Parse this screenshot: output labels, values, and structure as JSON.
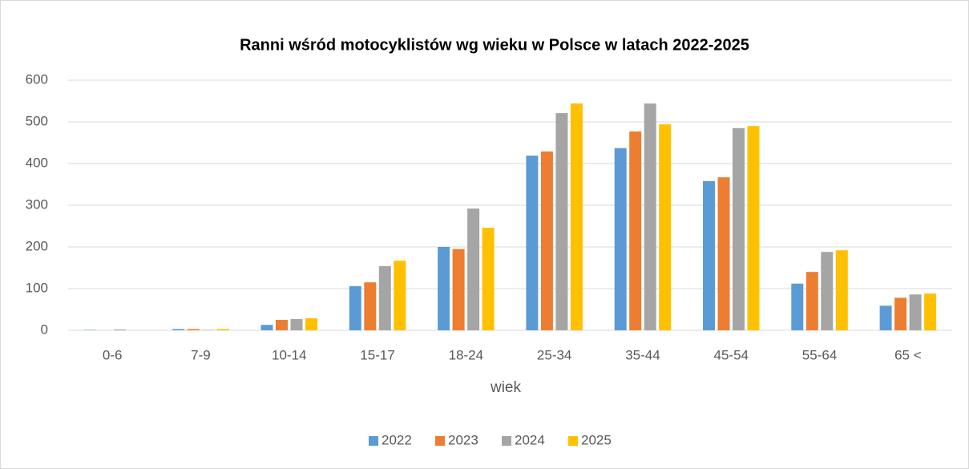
{
  "chart_data": {
    "type": "bar",
    "title": "Ranni wśród motocyklistów wg wieku w Polsce w latach 2022-2025",
    "x_label": "wiek",
    "categories": [
      "0-6",
      "7-9",
      "10-14",
      "15-17",
      "18-24",
      "25-34",
      "35-44",
      "45-54",
      "55-64",
      "65 <"
    ],
    "series": [
      {
        "name": "2022",
        "color": "#5b9bd5",
        "values": [
          1,
          3,
          13,
          106,
          200,
          419,
          437,
          358,
          112,
          59
        ]
      },
      {
        "name": "2023",
        "color": "#ed7d31",
        "values": [
          0,
          3,
          25,
          115,
          195,
          429,
          477,
          367,
          140,
          78
        ]
      },
      {
        "name": "2024",
        "color": "#a5a5a5",
        "values": [
          2,
          1,
          27,
          154,
          292,
          521,
          544,
          485,
          188,
          86
        ]
      },
      {
        "name": "2025",
        "color": "#ffc000",
        "values": [
          0,
          3,
          29,
          167,
          246,
          544,
          494,
          490,
          192,
          88
        ]
      }
    ],
    "ylim": [
      0,
      600
    ],
    "yticks": [
      0,
      100,
      200,
      300,
      400,
      500,
      600
    ],
    "grid": true,
    "legend": "bottom"
  }
}
